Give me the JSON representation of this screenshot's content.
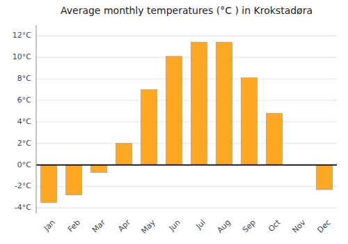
{
  "chart_data": {
    "type": "bar",
    "title": "Average monthly temperatures (°C ) in Krokstadøra",
    "categories": [
      "Jan",
      "Feb",
      "Mar",
      "Apr",
      "May",
      "Jun",
      "Jul",
      "Aug",
      "Sep",
      "Oct",
      "Nov",
      "Dec"
    ],
    "values": [
      -3.5,
      -2.8,
      -0.7,
      2.0,
      7.0,
      10.1,
      11.4,
      11.4,
      8.1,
      4.8,
      0.0,
      -2.3
    ],
    "color": "#FFA824",
    "ylim": [
      -4.5,
      13.0
    ],
    "yticks": [
      {
        "value": -4,
        "label": "-4°C"
      },
      {
        "value": -2,
        "label": "-2°C"
      },
      {
        "value": 0,
        "label": "0°C"
      },
      {
        "value": 2,
        "label": "2°C"
      },
      {
        "value": 4,
        "label": "4°C"
      },
      {
        "value": 6,
        "label": "6°C"
      },
      {
        "value": 8,
        "label": "8°C"
      },
      {
        "value": 10,
        "label": "10°C"
      },
      {
        "value": 12,
        "label": "12°C"
      }
    ],
    "grid": true
  }
}
